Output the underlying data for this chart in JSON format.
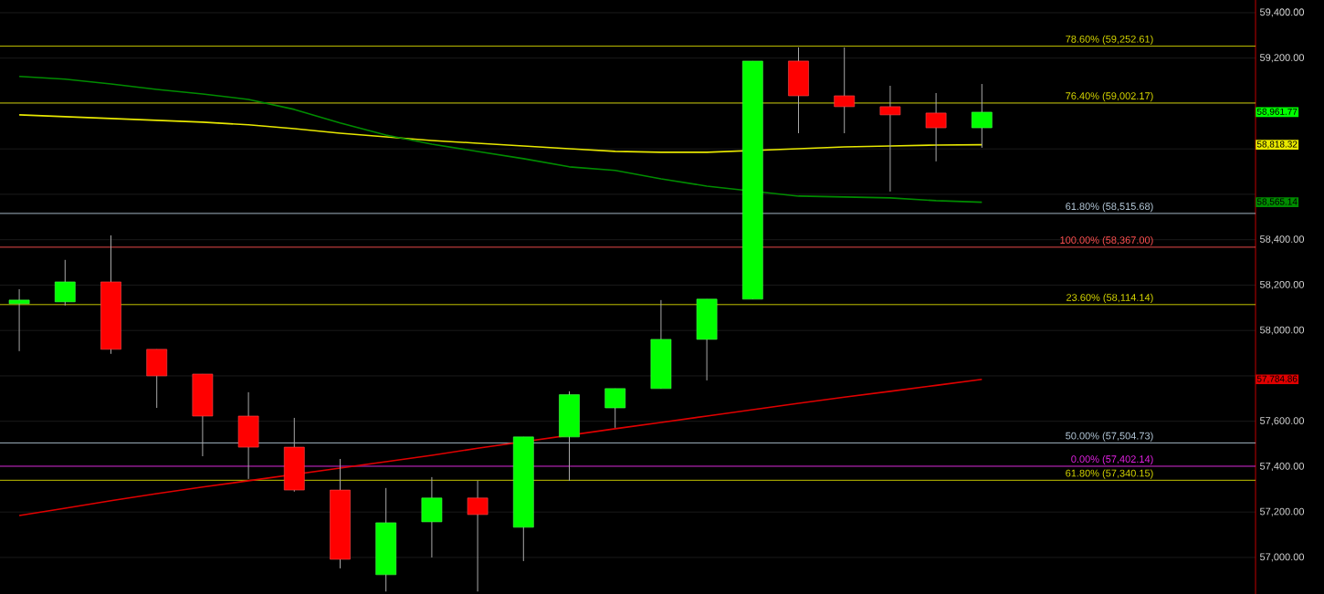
{
  "chart_data": {
    "type": "candlestick",
    "categories": [
      null,
      null,
      null,
      null,
      null,
      null,
      null,
      null,
      null,
      null,
      null,
      null,
      null,
      null,
      null,
      null,
      null,
      null,
      null,
      null,
      null,
      null,
      null,
      null,
      null,
      null,
      null
    ],
    "ohlc": [
      [
        58118,
        58182,
        57909,
        58134
      ],
      [
        58126,
        58311,
        58110,
        58214
      ],
      [
        58214,
        58419,
        57897,
        57917
      ],
      [
        57917,
        57917,
        57659,
        57800
      ],
      [
        57808,
        57808,
        57446,
        57623
      ],
      [
        57623,
        57728,
        57346,
        57486
      ],
      [
        57486,
        57615,
        57290,
        57297
      ],
      [
        57297,
        57434,
        56952,
        56992
      ],
      [
        56924,
        57306,
        56850,
        57153
      ],
      [
        57157,
        57354,
        57000,
        57262
      ],
      [
        57262,
        57338,
        56850,
        57189
      ],
      [
        57133,
        57531,
        56984,
        57531
      ],
      [
        57531,
        57732,
        57338,
        57717
      ],
      [
        57659,
        57744,
        57571,
        57744
      ],
      [
        57744,
        58134,
        57744,
        57961
      ],
      [
        57961,
        58138,
        57780,
        58138
      ],
      [
        58138,
        59187,
        58138,
        59187
      ],
      [
        59187,
        59247,
        58869,
        59034
      ],
      [
        59034,
        59247,
        58869,
        58986
      ],
      [
        58986,
        59078,
        58612,
        58950
      ],
      [
        58958,
        59046,
        58745,
        58893
      ],
      [
        58893,
        59086,
        58805,
        58961.77
      ],
      null,
      null,
      null,
      null,
      null
    ],
    "colors": [
      "#00ff00",
      "#00ff00",
      "#ff0000",
      "#ff0000",
      "#ff0000",
      "#ff0000",
      "#ff0000",
      "#ff0000",
      "#00ff00",
      "#00ff00",
      "#ff0000",
      "#00ff00",
      "#00ff00",
      "#00ff00",
      "#00ff00",
      "#00ff00",
      "#00ff00",
      "#ff0000",
      "#ff0000",
      "#ff0000",
      "#ff0000",
      "#00ff00",
      null,
      null,
      null,
      null,
      null
    ],
    "series": [
      {
        "type": "line",
        "color": "#e8e800",
        "values": [
          58950,
          58942,
          58934,
          58926,
          58918,
          58906,
          58889,
          58869,
          58853,
          58837,
          58825,
          58813,
          58801,
          58789,
          58785,
          58785,
          null,
          58801,
          58809,
          58813,
          58817,
          58818.32,
          null,
          null,
          null,
          null,
          null
        ]
      },
      {
        "type": "line",
        "color": "#008c00",
        "values": [
          59119,
          59107,
          59086,
          59062,
          59042,
          59018,
          58974,
          58914,
          58861,
          58821,
          58789,
          58757,
          58721,
          58705,
          58668,
          58636,
          null,
          58592,
          58588,
          58584,
          58572,
          58565.14,
          null,
          null,
          null,
          null,
          null
        ]
      },
      {
        "type": "line",
        "color": "#e00000",
        "values": [
          57185,
          57217,
          57250,
          57281,
          57310,
          57338,
          null,
          57394,
          57422,
          57450,
          57481,
          null,
          null,
          57567,
          57595,
          57623,
          57651,
          57679,
          57706,
          57732,
          57758,
          57784.86,
          null,
          null,
          null,
          null,
          null
        ]
      }
    ],
    "ref_lines": [
      {
        "axis": "y",
        "value": 59252.61,
        "label": "78.60% (59,252.61)",
        "color": "#d8d800"
      },
      {
        "axis": "y",
        "value": 59002.17,
        "label": "76.40% (59,002.17)",
        "color": "#d8d800"
      },
      {
        "axis": "y",
        "value": 58515.68,
        "label": "61.80% (58,515.68)",
        "color": "#b4c8d8"
      },
      {
        "axis": "y",
        "value": 58367.0,
        "label": "100.00% (58,367.00)",
        "color": "#ff5050"
      },
      {
        "axis": "y",
        "value": 58114.14,
        "label": "23.60% (58,114.14)",
        "color": "#d8d800"
      },
      {
        "axis": "y",
        "value": 57504.73,
        "label": "50.00% (57,504.73)",
        "color": "#b4c8d8"
      },
      {
        "axis": "y",
        "value": 57402.14,
        "label": "0.00% (57,402.14)",
        "color": "#e020e0"
      },
      {
        "axis": "y",
        "value": 57340.15,
        "label": "61.80% (57,340.15)",
        "color": "#d8d800"
      }
    ],
    "annotations": [
      "58,961.77",
      "58,818.32",
      "58,565.14",
      "57,784.86"
    ],
    "ylim": [
      56839,
      59456
    ],
    "yticks": [
      {
        "value": 57000,
        "label": "57,000.00"
      },
      {
        "value": 57200,
        "label": "57,200.00"
      },
      {
        "value": 57400,
        "label": "57,400.00"
      },
      {
        "value": 57600,
        "label": "57,600.00"
      },
      {
        "value": 57800,
        "label": null
      },
      {
        "value": 58000,
        "label": "58,000.00"
      },
      {
        "value": 58200,
        "label": "58,200.00"
      },
      {
        "value": 58400,
        "label": "58,400.00"
      },
      {
        "value": 58600,
        "label": null
      },
      {
        "value": 58800,
        "label": null
      },
      {
        "value": 59000,
        "label": null
      },
      {
        "value": 59200,
        "label": "59,200.00"
      },
      {
        "value": 59400,
        "label": "59,400.00"
      }
    ],
    "grid": true,
    "tick_labels": "y"
  }
}
